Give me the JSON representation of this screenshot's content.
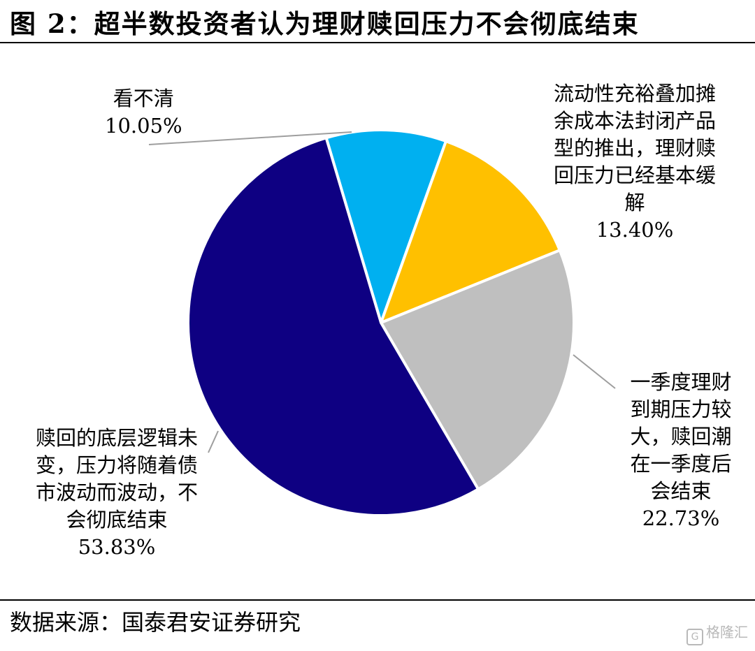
{
  "header": {
    "title": "图 2：超半数投资者认为理财赎回压力不会彻底结束"
  },
  "footer": {
    "source": "数据来源：国泰君安证券研究",
    "watermark": "格隆汇"
  },
  "chart_data": {
    "type": "pie",
    "title": "图 2：超半数投资者认为理财赎回压力不会彻底结束",
    "slices": [
      {
        "label": "看不清",
        "value": 10.05,
        "display": "10.05%",
        "color": "#00B0F0"
      },
      {
        "label": "流动性充裕叠加摊余成本法封闭产品型的推出，理财赎回压力已经基本缓解",
        "value": 13.4,
        "display": "13.40%",
        "color": "#FFC000"
      },
      {
        "label": "一季度理财到期压力较大，赎回潮在一季度后会结束",
        "value": 22.73,
        "display": "22.73%",
        "color": "#BFBFBF"
      },
      {
        "label": "赎回的底层逻辑未变，压力将随着债市波动而波动，不会彻底结束",
        "value": 53.83,
        "display": "53.83%",
        "color": "#0E0082"
      }
    ],
    "legend": "none"
  },
  "labels": {
    "s0": {
      "lines": [
        "看不清"
      ],
      "pct": "10.05%"
    },
    "s1": {
      "lines": [
        "流动性充裕叠加摊",
        "余成本法封闭产品",
        "型的推出，理财赎",
        "回压力已经基本缓",
        "解"
      ],
      "pct": "13.40%"
    },
    "s2": {
      "lines": [
        "一季度理财",
        "到期压力较",
        "大，赎回潮",
        "在一季度后",
        "会结束"
      ],
      "pct": "22.73%"
    },
    "s3": {
      "lines": [
        "赎回的底层逻辑未",
        "变，压力将随着债",
        "市波动而波动，不",
        "会彻底结束"
      ],
      "pct": "53.83%"
    }
  }
}
